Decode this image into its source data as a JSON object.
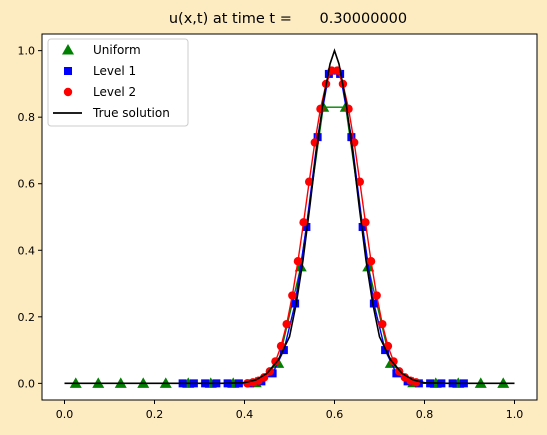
{
  "colors": {
    "figure_background": "#fdebc1",
    "axes_background": "#ffffff",
    "uniform": "#008000",
    "level1": "#0000ff",
    "level2": "#ff0000",
    "true_solution": "#000000"
  },
  "chart_data": {
    "type": "line",
    "title": "u(x,t) at time t =      0.30000000",
    "xlabel": "",
    "ylabel": "",
    "xlim": [
      -0.05,
      1.05
    ],
    "ylim": [
      -0.05,
      1.05
    ],
    "xticks": [
      0.0,
      0.2,
      0.4,
      0.6,
      0.8,
      1.0
    ],
    "xtick_labels": [
      "0.0",
      "0.2",
      "0.4",
      "0.6",
      "0.8",
      "1.0"
    ],
    "yticks": [
      0.0,
      0.2,
      0.4,
      0.6,
      0.8,
      1.0
    ],
    "ytick_labels": [
      "0.0",
      "0.2",
      "0.4",
      "0.6",
      "0.8",
      "1.0"
    ],
    "grid": false,
    "legend_position": "upper-left",
    "series": [
      {
        "name": "Uniform",
        "marker": "triangle",
        "color": "#008000",
        "x": [
          0.025,
          0.075,
          0.125,
          0.175,
          0.225,
          0.275,
          0.325,
          0.375,
          0.425,
          0.475,
          0.525,
          0.575,
          0.625,
          0.675,
          0.725,
          0.775,
          0.825,
          0.875,
          0.925,
          0.975
        ],
        "y": [
          0.0,
          0.0,
          0.0,
          0.0,
          0.0,
          0.0,
          0.0,
          0.0,
          0.002,
          0.06,
          0.35,
          0.83,
          0.83,
          0.35,
          0.06,
          0.002,
          0.0,
          0.0,
          0.0,
          0.0
        ]
      },
      {
        "name": "Level 1",
        "marker": "square",
        "color": "#0000ff",
        "x": [
          0.2625,
          0.2875,
          0.3125,
          0.3375,
          0.3625,
          0.3875,
          0.4125,
          0.4375,
          0.4625,
          0.4875,
          0.5125,
          0.5375,
          0.5625,
          0.5875,
          0.6125,
          0.6375,
          0.6625,
          0.6875,
          0.7125,
          0.7375,
          0.7625,
          0.7875,
          0.8125,
          0.8375,
          0.8625,
          0.8875
        ],
        "y": [
          0.0,
          0.0,
          0.0,
          0.0,
          0.0,
          0.0,
          0.0,
          0.006,
          0.03,
          0.1,
          0.24,
          0.47,
          0.74,
          0.93,
          0.93,
          0.74,
          0.47,
          0.24,
          0.1,
          0.03,
          0.006,
          0.0,
          0.0,
          0.0,
          0.0,
          0.0
        ]
      },
      {
        "name": "Level 2",
        "marker": "circle",
        "color": "#ff0000",
        "x": [
          0.40625,
          0.41875,
          0.43125,
          0.44375,
          0.45625,
          0.46875,
          0.48125,
          0.49375,
          0.50625,
          0.51875,
          0.53125,
          0.54375,
          0.55625,
          0.56875,
          0.58125,
          0.59375,
          0.60625,
          0.61875,
          0.63125,
          0.64375,
          0.65625,
          0.66875,
          0.68125,
          0.69375,
          0.70625,
          0.71875,
          0.73125,
          0.74375,
          0.75625,
          0.76875,
          0.78125
        ],
        "y": [
          0.0,
          0.003,
          0.008,
          0.018,
          0.036,
          0.066,
          0.112,
          0.178,
          0.264,
          0.367,
          0.484,
          0.606,
          0.724,
          0.825,
          0.9,
          0.94,
          0.94,
          0.9,
          0.825,
          0.724,
          0.606,
          0.484,
          0.367,
          0.264,
          0.178,
          0.112,
          0.066,
          0.036,
          0.018,
          0.008,
          0.003
        ]
      },
      {
        "name": "True solution",
        "marker": "line",
        "color": "#000000",
        "x": [
          0.0,
          0.35,
          0.4,
          0.425,
          0.45,
          0.475,
          0.5,
          0.515,
          0.53,
          0.545,
          0.56,
          0.575,
          0.59,
          0.6,
          0.61,
          0.625,
          0.64,
          0.655,
          0.67,
          0.685,
          0.7,
          0.725,
          0.75,
          0.775,
          0.8,
          0.85,
          1.0
        ],
        "y": [
          0.0,
          0.0,
          0.002,
          0.01,
          0.03,
          0.07,
          0.14,
          0.24,
          0.37,
          0.53,
          0.7,
          0.85,
          0.96,
          1.0,
          0.96,
          0.85,
          0.7,
          0.53,
          0.37,
          0.24,
          0.14,
          0.07,
          0.03,
          0.01,
          0.002,
          0.0,
          0.0
        ]
      }
    ]
  }
}
